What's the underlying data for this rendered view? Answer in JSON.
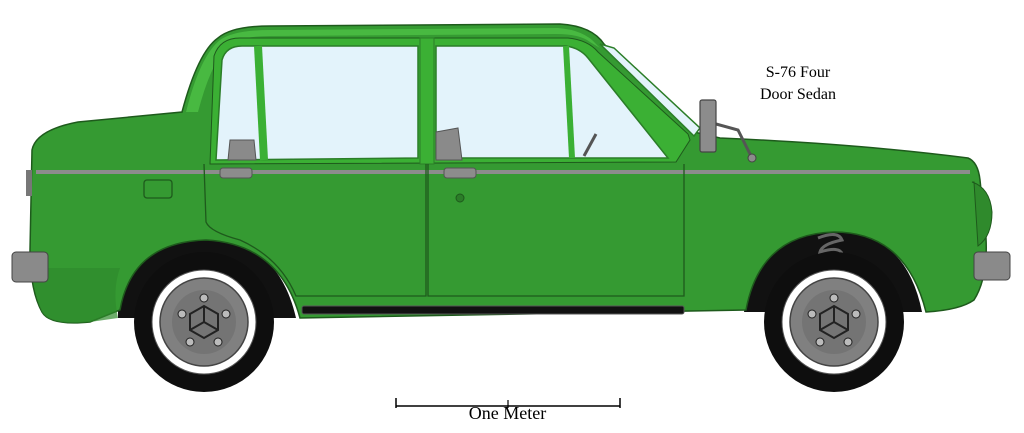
{
  "caption": {
    "line1": "S-76 Four",
    "line2": "Door Sedan"
  },
  "scale_bar": {
    "label": "One Meter"
  },
  "colors": {
    "body": "#359a32",
    "body_dark": "#2b7d28",
    "body_light": "#4dc045",
    "outline": "#1e5a1c",
    "glass": "#e3f3fb",
    "chrome": "#8c8c8c",
    "tire": "#0e0e0e",
    "wheel": "#808080",
    "background": "#ffffff"
  }
}
